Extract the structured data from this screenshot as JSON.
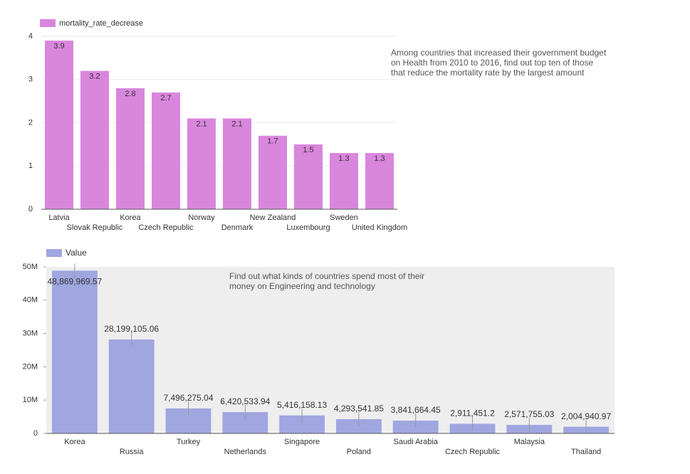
{
  "chart_data": [
    {
      "type": "bar",
      "legend_name": "mortality_rate_decrease",
      "color": "#d986dd",
      "annotation": "Among countries that increased their government budget on Health from 2010 to 2016, find out top ten of those that reduce the mortality rate by the largest amount",
      "categories": [
        "Latvia",
        "Slovak Republic",
        "Korea",
        "Czech Republic",
        "Norway",
        "Denmark",
        "New Zealand",
        "Luxembourg",
        "Sweden",
        "United Kingdom"
      ],
      "values": [
        3.9,
        3.2,
        2.8,
        2.7,
        2.1,
        2.1,
        1.7,
        1.5,
        1.3,
        1.3
      ],
      "ylim": [
        0,
        4
      ],
      "yticks": [
        0,
        1,
        2,
        3,
        4
      ],
      "grid": true
    },
    {
      "type": "bar",
      "legend_name": "Value",
      "color": "#a0a6e0",
      "annotation": "Find out what kinds of countries spend most of their money on Engineering and technology",
      "categories": [
        "Korea",
        "Russia",
        "Turkey",
        "Netherlands",
        "Singapore",
        "Poland",
        "Saudi Arabia",
        "Czech Republic",
        "Malaysia",
        "Thailand"
      ],
      "values": [
        48869969.57,
        28199105.06,
        7496275.04,
        6420533.94,
        5416158.13,
        4293541.85,
        3841664.45,
        2911451.2,
        2571755.03,
        2004940.97
      ],
      "value_labels": [
        "48,869,969.57",
        "28,199,105.06",
        "7,496,275.04",
        "6,420,533.94",
        "5,416,158.13",
        "4,293,541.85",
        "3,841,664.45",
        "2,911,451.2",
        "2,571,755.03",
        "2,004,940.97"
      ],
      "ylim": [
        0,
        50000000
      ],
      "yticks": [
        0,
        {
          "value": 10000000,
          "label": "10M"
        },
        {
          "value": 20000000,
          "label": "20M"
        },
        {
          "value": 30000000,
          "label": "30M"
        },
        {
          "value": 40000000,
          "label": "40M"
        },
        {
          "value": 50000000,
          "label": "50M"
        }
      ],
      "grid": false
    }
  ]
}
